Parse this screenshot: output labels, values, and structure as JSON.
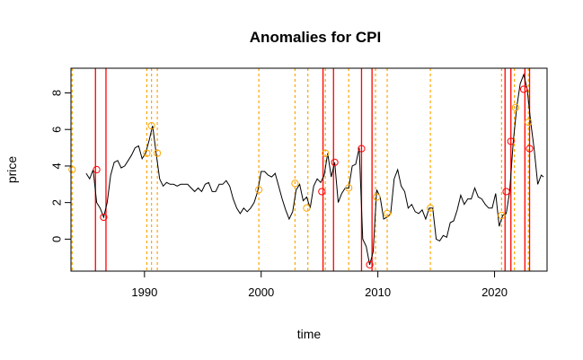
{
  "chart_data": {
    "type": "line",
    "title": "Anomalies for CPI",
    "xlabel": "time",
    "ylabel": "price",
    "xlim": [
      1983.7,
      2024.5
    ],
    "ylim": [
      -1.75,
      9.35
    ],
    "x_ticks": [
      1990,
      2000,
      2010,
      2020
    ],
    "x_tick_labels": [
      "1990",
      "2000",
      "2010",
      "2020"
    ],
    "y_ticks": [
      0,
      2,
      4,
      6,
      8
    ],
    "y_tick_labels": [
      "0",
      "2",
      "4",
      "6",
      "8"
    ],
    "grid": false,
    "legend": "none",
    "colors": {
      "series": "#000000",
      "major": "#ff0000",
      "minor": "#ffa500"
    },
    "series": [
      {
        "x": [
          1983.8,
          1984.0,
          1984.3,
          1984.6,
          1985.0,
          1985.3,
          1985.6,
          1985.9,
          1986.2,
          1986.5,
          1986.8,
          1987.1,
          1987.4,
          1987.7,
          1988.0,
          1988.3,
          1988.6,
          1988.9,
          1989.2,
          1989.5,
          1989.8,
          1990.1,
          1990.4,
          1990.7,
          1991.0,
          1991.3,
          1991.6,
          1991.9,
          1992.2,
          1992.5,
          1992.8,
          1993.1,
          1993.4,
          1993.7,
          1994.0,
          1994.3,
          1994.6,
          1994.9,
          1995.2,
          1995.5,
          1995.8,
          1996.1,
          1996.4,
          1996.7,
          1997.0,
          1997.3,
          1997.6,
          1997.9,
          1998.2,
          1998.5,
          1998.8,
          1999.1,
          1999.4,
          1999.7,
          2000.0,
          2000.3,
          2000.6,
          2000.9,
          2001.2,
          2001.5,
          2001.8,
          2002.1,
          2002.4,
          2002.7,
          2003.0,
          2003.3,
          2003.6,
          2003.9,
          2004.2,
          2004.5,
          2004.8,
          2005.1,
          2005.4,
          2005.7,
          2006.0,
          2006.3,
          2006.6,
          2006.9,
          2007.2,
          2007.5,
          2007.8,
          2008.1,
          2008.4,
          2008.7,
          2009.0,
          2009.3,
          2009.6,
          2009.9,
          2010.2,
          2010.5,
          2010.8,
          2011.1,
          2011.4,
          2011.7,
          2012.0,
          2012.3,
          2012.6,
          2012.9,
          2013.2,
          2013.5,
          2013.8,
          2014.1,
          2014.4,
          2014.7,
          2015.0,
          2015.3,
          2015.6,
          2015.9,
          2016.2,
          2016.5,
          2016.8,
          2017.1,
          2017.4,
          2017.7,
          2018.0,
          2018.3,
          2018.6,
          2018.9,
          2019.2,
          2019.5,
          2019.8,
          2020.1,
          2020.4,
          2020.7,
          2021.0,
          2021.3,
          2021.6,
          2021.9,
          2022.2,
          2022.5,
          2022.8,
          2023.1,
          2023.4,
          2023.7,
          2024.0,
          2024.2
        ],
        "y": [
          3.8,
          null,
          null,
          null,
          3.6,
          3.3,
          3.8,
          2.0,
          1.7,
          1.2,
          2.0,
          3.5,
          4.2,
          4.3,
          3.9,
          4.0,
          4.3,
          4.6,
          5.0,
          5.1,
          4.4,
          4.7,
          5.4,
          6.2,
          4.7,
          3.3,
          2.9,
          3.1,
          3.0,
          3.0,
          2.9,
          3.0,
          3.0,
          3.0,
          2.8,
          2.6,
          2.8,
          2.6,
          3.0,
          3.1,
          2.6,
          2.6,
          3.0,
          3.0,
          3.2,
          2.9,
          2.2,
          1.7,
          1.4,
          1.7,
          1.5,
          1.7,
          2.0,
          2.6,
          3.7,
          3.7,
          3.5,
          3.4,
          3.6,
          2.9,
          2.2,
          1.6,
          1.1,
          1.5,
          2.7,
          3.0,
          2.1,
          2.3,
          1.7,
          2.9,
          3.3,
          3.1,
          3.5,
          4.7,
          3.4,
          4.2,
          2.0,
          2.5,
          2.8,
          2.8,
          4.0,
          4.1,
          5.0,
          0.0,
          -0.4,
          -1.4,
          -0.7,
          2.7,
          2.3,
          1.1,
          1.2,
          1.4,
          3.3,
          3.8,
          2.9,
          2.6,
          1.7,
          1.9,
          1.5,
          1.4,
          1.6,
          1.1,
          1.7,
          1.7,
          0.0,
          -0.1,
          0.2,
          0.1,
          0.9,
          1.0,
          1.6,
          2.4,
          1.9,
          2.2,
          2.2,
          2.8,
          2.3,
          2.2,
          1.9,
          1.7,
          1.7,
          2.5,
          0.7,
          1.3,
          1.4,
          2.6,
          5.3,
          7.2,
          8.5,
          9.0,
          8.2,
          6.4,
          4.9,
          3.0,
          3.5,
          3.4
        ]
      }
    ],
    "anomalies_major": {
      "lines_x": [
        1985.8,
        1986.7,
        2005.3,
        2006.2,
        2008.6,
        2009.5,
        2020.9,
        2021.4,
        2022.6,
        2023.0
      ],
      "points": [
        {
          "x": 1985.9,
          "y": 3.8
        },
        {
          "x": 1986.5,
          "y": 1.2
        },
        {
          "x": 2005.2,
          "y": 2.6
        },
        {
          "x": 2006.3,
          "y": 4.2
        },
        {
          "x": 2008.6,
          "y": 4.95
        },
        {
          "x": 2009.3,
          "y": -1.4
        },
        {
          "x": 2021.0,
          "y": 2.6
        },
        {
          "x": 2021.4,
          "y": 5.35
        },
        {
          "x": 2022.5,
          "y": 8.2
        },
        {
          "x": 2023.0,
          "y": 4.95
        }
      ]
    },
    "anomalies_minor": {
      "lines_x": [
        1983.8,
        1990.2,
        1990.6,
        1991.1,
        1999.8,
        2002.9,
        2004.0,
        2005.5,
        2007.5,
        2009.8,
        2010.8,
        2014.5,
        2020.6,
        2021.7,
        2022.9
      ],
      "points": [
        {
          "x": 1983.8,
          "y": 3.8
        },
        {
          "x": 1990.2,
          "y": 4.7
        },
        {
          "x": 1990.6,
          "y": 6.2
        },
        {
          "x": 1991.1,
          "y": 4.7
        },
        {
          "x": 1999.8,
          "y": 2.7
        },
        {
          "x": 2002.9,
          "y": 3.05
        },
        {
          "x": 2003.9,
          "y": 1.7
        },
        {
          "x": 2005.5,
          "y": 4.7
        },
        {
          "x": 2007.5,
          "y": 2.8
        },
        {
          "x": 2009.9,
          "y": 2.3
        },
        {
          "x": 2010.8,
          "y": 1.4
        },
        {
          "x": 2014.5,
          "y": 1.7
        },
        {
          "x": 2020.6,
          "y": 1.3
        },
        {
          "x": 2021.8,
          "y": 7.2
        },
        {
          "x": 2022.9,
          "y": 6.4
        }
      ]
    }
  }
}
